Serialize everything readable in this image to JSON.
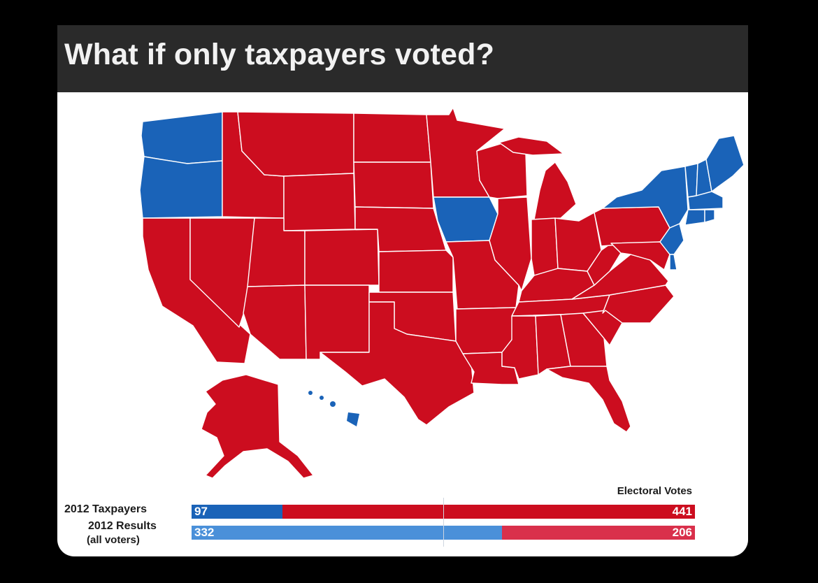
{
  "title": "What if only taxpayers voted?",
  "colors": {
    "red": "#cc0d1f",
    "blue": "#1a63b8",
    "light_blue": "#4a90d9",
    "light_red": "#d9304b",
    "title_bg": "#2a2a2a"
  },
  "map": {
    "blue_states": [
      "Washington",
      "Oregon",
      "Iowa",
      "Hawaii",
      "New York",
      "Vermont",
      "New Hampshire",
      "Maine",
      "Massachusetts",
      "Connecticut",
      "Rhode Island",
      "New Jersey",
      "Delaware"
    ],
    "red_states": [
      "California",
      "Nevada",
      "Idaho",
      "Montana",
      "Wyoming",
      "Utah",
      "Arizona",
      "Colorado",
      "New Mexico",
      "North Dakota",
      "South Dakota",
      "Nebraska",
      "Kansas",
      "Oklahoma",
      "Texas",
      "Minnesota",
      "Missouri",
      "Arkansas",
      "Louisiana",
      "Wisconsin",
      "Illinois",
      "Michigan",
      "Indiana",
      "Ohio",
      "Kentucky",
      "Tennessee",
      "Mississippi",
      "Alabama",
      "Georgia",
      "Florida",
      "South Carolina",
      "North Carolina",
      "Virginia",
      "West Virginia",
      "Pennsylvania",
      "Maryland",
      "Alaska"
    ]
  },
  "legend": {
    "heading": "Electoral Votes",
    "rows": [
      {
        "label": "2012 Taxpayers",
        "sublabel": "",
        "dem": 97,
        "rep": 441,
        "dem_label": "97",
        "rep_label": "441"
      },
      {
        "label": "2012 Results",
        "sublabel": "(all voters)",
        "dem": 332,
        "rep": 206,
        "dem_label": "332",
        "rep_label": "206"
      }
    ]
  }
}
